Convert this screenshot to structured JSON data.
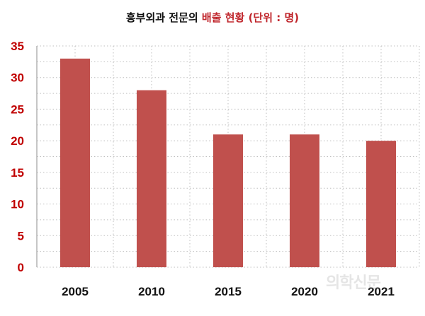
{
  "title": {
    "part1": "흥부외과 전문의 ",
    "part2": "배출 현황 (단위 : 명)"
  },
  "watermark": "의학신문",
  "colors": {
    "bar": "#c0504d",
    "highlight": "#c0272d",
    "ytick": "#c00000",
    "grid": "#bfbfbf"
  },
  "chart_data": {
    "type": "bar",
    "title": "흥부외과 전문의 배출 현황 (단위 : 명)",
    "categories": [
      "2005",
      "2010",
      "2015",
      "2020",
      "2021"
    ],
    "values": [
      33,
      28,
      21,
      21,
      20
    ],
    "xlabel": "",
    "ylabel": "",
    "ylim": [
      0,
      35
    ],
    "yticks": [
      0,
      5,
      10,
      15,
      20,
      25,
      30,
      35
    ],
    "grid": true,
    "legend": "none"
  }
}
